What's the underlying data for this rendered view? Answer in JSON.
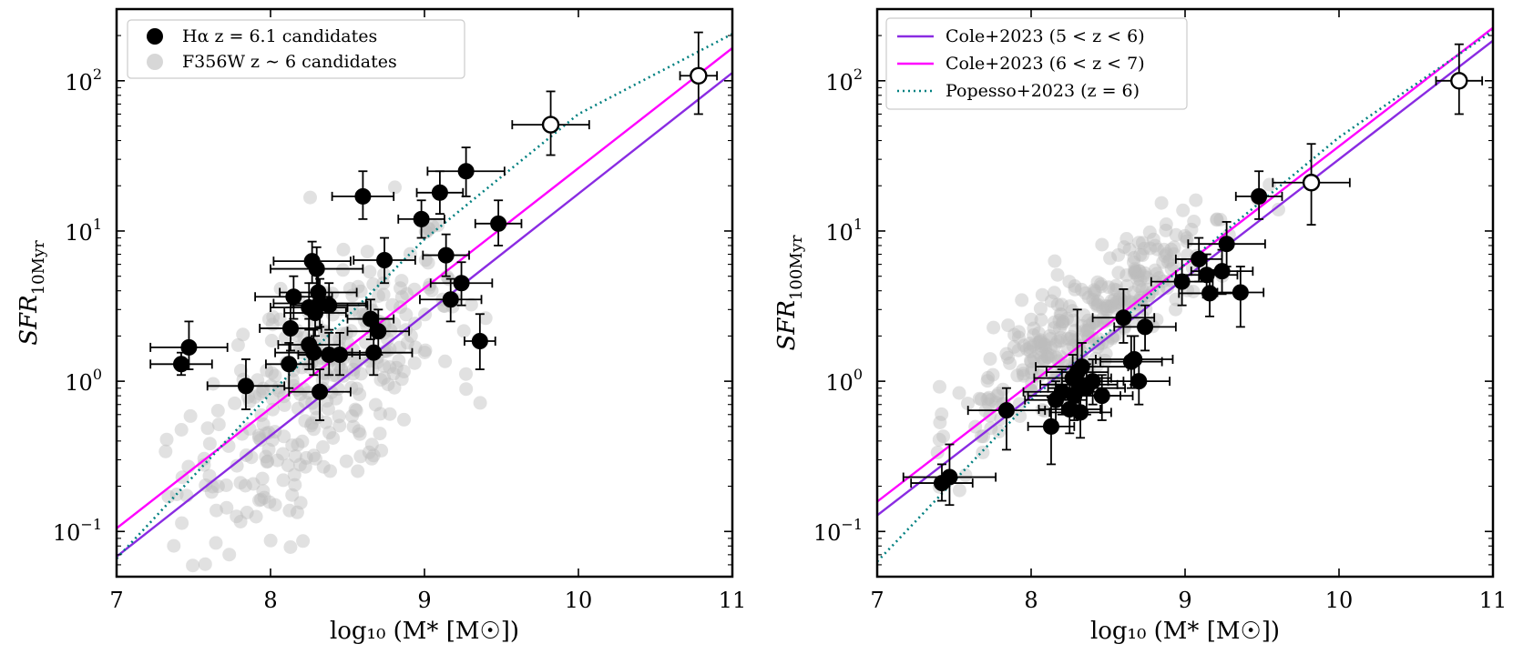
{
  "figure": {
    "legend_left": {
      "entries": [
        {
          "label": "Hα z = 6.1 candidates",
          "marker": "filled-circle",
          "color": "#000000"
        },
        {
          "label": "F356W z ∼ 6 candidates",
          "marker": "filled-circle",
          "color": "#bdbdbd"
        }
      ],
      "placement": "upper-left"
    },
    "legend_right": {
      "entries": [
        {
          "label": "Cole+2023 (5 < z < 6)",
          "style": "solid",
          "color": "#8a2be2"
        },
        {
          "label": "Cole+2023 (6 < z < 7)",
          "style": "solid",
          "color": "#ff00ff"
        },
        {
          "label": "Popesso+2023 (z = 6)",
          "style": "dotted",
          "color": "#008080"
        }
      ],
      "placement": "upper-left"
    },
    "xlabel": "log₁₀ (M* [M☉])",
    "colors": {
      "halpha": "#000000",
      "background": "#bdbdbd",
      "cole56": "#8a2be2",
      "cole67": "#ff00ff",
      "popesso": "#008080"
    }
  },
  "chart_data": [
    {
      "type": "scatter",
      "panel": "left",
      "ylabel": "SFR10Myr",
      "ylabel_main": "SFR",
      "ylabel_sub": "10Myr",
      "xlabel": "log₁₀ (M* [M☉])",
      "xlim": [
        7,
        11
      ],
      "ylim": [
        0.05,
        300
      ],
      "yscale": "log",
      "xticks": [
        "7",
        "8",
        "9",
        "10",
        "11"
      ],
      "yticks": [
        {
          "base": "10",
          "exp": "−1"
        },
        {
          "base": "10",
          "exp": "0"
        },
        {
          "base": "10",
          "exp": "1"
        },
        {
          "base": "10",
          "exp": "2"
        }
      ],
      "lines": [
        {
          "name": "Cole+2023 (5 < z < 6)",
          "type": "linear",
          "x": [
            7,
            11
          ],
          "y": [
            0.068,
            113
          ]
        },
        {
          "name": "Cole+2023 (6 < z < 7)",
          "type": "linear",
          "x": [
            7,
            11
          ],
          "y": [
            0.105,
            165
          ]
        },
        {
          "name": "Popesso+2023 (z = 6)",
          "type": "curve",
          "x": [
            7,
            8,
            9,
            10,
            11
          ],
          "y": [
            0.066,
            0.83,
            8.8,
            60,
            205
          ]
        }
      ],
      "series": [
        {
          "name": "Hα z = 6.1 candidates",
          "points": [
            {
              "x": 7.42,
              "y": 1.3,
              "xerr": 0.2,
              "ylo": 1.1,
              "yhi": 1.55
            },
            {
              "x": 7.47,
              "y": 1.68,
              "xerr": 0.25,
              "ylo": 1.2,
              "yhi": 2.5
            },
            {
              "x": 7.84,
              "y": 0.93,
              "xerr": 0.25,
              "ylo": 0.65,
              "yhi": 1.4
            },
            {
              "x": 8.12,
              "y": 1.3,
              "xerr": 0.15,
              "ylo": 0.9,
              "yhi": 1.8
            },
            {
              "x": 8.13,
              "y": 2.25,
              "xerr": 0.2,
              "ylo": 1.6,
              "yhi": 3.1
            },
            {
              "x": 8.15,
              "y": 3.65,
              "xerr": 0.25,
              "ylo": 2.6,
              "yhi": 5.0
            },
            {
              "x": 8.25,
              "y": 1.75,
              "xerr": 0.2,
              "ylo": 1.2,
              "yhi": 2.6
            },
            {
              "x": 8.25,
              "y": 3.1,
              "xerr": 0.25,
              "ylo": 2.2,
              "yhi": 4.5
            },
            {
              "x": 8.27,
              "y": 6.3,
              "xerr": 0.25,
              "ylo": 4.5,
              "yhi": 8.5
            },
            {
              "x": 8.28,
              "y": 1.55,
              "xerr": 0.25,
              "ylo": 1.1,
              "yhi": 2.2
            },
            {
              "x": 8.29,
              "y": 2.85,
              "xerr": 0.2,
              "ylo": 2.0,
              "yhi": 4.0
            },
            {
              "x": 8.3,
              "y": 5.6,
              "xerr": 0.3,
              "ylo": 4.0,
              "yhi": 7.8
            },
            {
              "x": 8.31,
              "y": 3.9,
              "xerr": 0.25,
              "ylo": 2.8,
              "yhi": 5.5
            },
            {
              "x": 8.32,
              "y": 0.85,
              "xerr": 0.2,
              "ylo": 0.55,
              "yhi": 1.2
            },
            {
              "x": 8.32,
              "y": 3.3,
              "xerr": 0.3,
              "ylo": 2.3,
              "yhi": 4.8
            },
            {
              "x": 8.38,
              "y": 1.5,
              "xerr": 0.2,
              "ylo": 1.1,
              "yhi": 2.1
            },
            {
              "x": 8.38,
              "y": 3.2,
              "xerr": 0.25,
              "ylo": 2.2,
              "yhi": 4.5
            },
            {
              "x": 8.45,
              "y": 1.5,
              "xerr": 0.2,
              "ylo": 1.1,
              "yhi": 2.1
            },
            {
              "x": 8.6,
              "y": 17.0,
              "xerr": 0.2,
              "ylo": 12,
              "yhi": 25
            },
            {
              "x": 8.65,
              "y": 2.6,
              "xerr": 0.15,
              "ylo": 1.9,
              "yhi": 3.5
            },
            {
              "x": 8.67,
              "y": 1.55,
              "xerr": 0.25,
              "ylo": 1.1,
              "yhi": 2.2
            },
            {
              "x": 8.7,
              "y": 2.15,
              "xerr": 0.2,
              "ylo": 1.5,
              "yhi": 3.0
            },
            {
              "x": 8.74,
              "y": 6.4,
              "xerr": 0.2,
              "ylo": 4.5,
              "yhi": 9.0
            },
            {
              "x": 8.98,
              "y": 12.0,
              "xerr": 0.15,
              "ylo": 9,
              "yhi": 16
            },
            {
              "x": 9.1,
              "y": 18.0,
              "xerr": 0.15,
              "ylo": 13,
              "yhi": 25
            },
            {
              "x": 9.14,
              "y": 6.9,
              "xerr": 0.15,
              "ylo": 5,
              "yhi": 9.5
            },
            {
              "x": 9.17,
              "y": 3.5,
              "xerr": 0.2,
              "ylo": 2.5,
              "yhi": 4.8
            },
            {
              "x": 9.24,
              "y": 4.5,
              "xerr": 0.2,
              "ylo": 3.2,
              "yhi": 6.2
            },
            {
              "x": 9.27,
              "y": 25.0,
              "xerr": 0.25,
              "ylo": 17,
              "yhi": 36
            },
            {
              "x": 9.36,
              "y": 1.85,
              "xerr": 0.1,
              "ylo": 1.2,
              "yhi": 2.8
            },
            {
              "x": 9.48,
              "y": 11.2,
              "xerr": 0.15,
              "ylo": 8,
              "yhi": 16
            }
          ]
        },
        {
          "name": "open-circle",
          "points": [
            {
              "x": 9.82,
              "y": 51,
              "xerr": 0.25,
              "ylo": 32,
              "yhi": 85
            },
            {
              "x": 10.78,
              "y": 108,
              "xerr": 0.12,
              "ylo": 60,
              "yhi": 210
            }
          ]
        }
      ]
    },
    {
      "type": "scatter",
      "panel": "right",
      "ylabel": "SFR100Myr",
      "ylabel_main": "SFR",
      "ylabel_sub": "100Myr",
      "xlabel": "log₁₀ (M* [M☉])",
      "xlim": [
        7,
        11
      ],
      "ylim": [
        0.05,
        300
      ],
      "yscale": "log",
      "xticks": [
        "7",
        "8",
        "9",
        "10",
        "11"
      ],
      "yticks": [
        {
          "base": "10",
          "exp": "−1"
        },
        {
          "base": "10",
          "exp": "0"
        },
        {
          "base": "10",
          "exp": "1"
        },
        {
          "base": "10",
          "exp": "2"
        }
      ],
      "lines": [
        {
          "name": "Cole+2023 (5 < z < 6)",
          "type": "linear",
          "x": [
            7,
            11
          ],
          "y": [
            0.128,
            185
          ]
        },
        {
          "name": "Cole+2023 (6 < z < 7)",
          "type": "linear",
          "x": [
            7,
            11
          ],
          "y": [
            0.158,
            225
          ]
        },
        {
          "name": "Popesso+2023 (z = 6)",
          "type": "curve",
          "x": [
            7,
            8,
            9,
            10,
            11
          ],
          "y": [
            0.063,
            0.75,
            6.0,
            42,
            215
          ]
        }
      ],
      "series": [
        {
          "name": "Hα z = 6.1 candidates",
          "points": [
            {
              "x": 7.42,
              "y": 0.21,
              "xerr": 0.2,
              "ylo": 0.16,
              "yhi": 0.28
            },
            {
              "x": 7.47,
              "y": 0.23,
              "xerr": 0.3,
              "ylo": 0.15,
              "yhi": 0.38
            },
            {
              "x": 7.84,
              "y": 0.64,
              "xerr": 0.25,
              "ylo": 0.35,
              "yhi": 0.9
            },
            {
              "x": 8.13,
              "y": 0.5,
              "xerr": 0.15,
              "ylo": 0.28,
              "yhi": 0.78
            },
            {
              "x": 8.16,
              "y": 0.75,
              "xerr": 0.2,
              "ylo": 0.5,
              "yhi": 1.0
            },
            {
              "x": 8.2,
              "y": 0.85,
              "xerr": 0.25,
              "ylo": 0.6,
              "yhi": 1.2
            },
            {
              "x": 8.25,
              "y": 0.65,
              "xerr": 0.2,
              "ylo": 0.45,
              "yhi": 0.95
            },
            {
              "x": 8.27,
              "y": 1.05,
              "xerr": 0.25,
              "ylo": 0.7,
              "yhi": 1.5
            },
            {
              "x": 8.28,
              "y": 0.8,
              "xerr": 0.3,
              "ylo": 0.55,
              "yhi": 1.15
            },
            {
              "x": 8.3,
              "y": 1.15,
              "xerr": 0.2,
              "ylo": 0.8,
              "yhi": 3.0
            },
            {
              "x": 8.31,
              "y": 0.95,
              "xerr": 0.25,
              "ylo": 0.65,
              "yhi": 1.3
            },
            {
              "x": 8.32,
              "y": 0.62,
              "xerr": 0.2,
              "ylo": 0.42,
              "yhi": 0.9
            },
            {
              "x": 8.33,
              "y": 1.25,
              "xerr": 0.3,
              "ylo": 0.85,
              "yhi": 1.8
            },
            {
              "x": 8.36,
              "y": 0.9,
              "xerr": 0.25,
              "ylo": 0.6,
              "yhi": 1.3
            },
            {
              "x": 8.4,
              "y": 1.0,
              "xerr": 0.2,
              "ylo": 0.7,
              "yhi": 1.4
            },
            {
              "x": 8.46,
              "y": 0.8,
              "xerr": 0.2,
              "ylo": 0.55,
              "yhi": 1.1
            },
            {
              "x": 8.6,
              "y": 2.65,
              "xerr": 0.2,
              "ylo": 1.8,
              "yhi": 4.1
            },
            {
              "x": 8.65,
              "y": 1.35,
              "xerr": 0.2,
              "ylo": 0.9,
              "yhi": 2.0
            },
            {
              "x": 8.67,
              "y": 1.4,
              "xerr": 0.25,
              "ylo": 0.95,
              "yhi": 2.0
            },
            {
              "x": 8.7,
              "y": 1.0,
              "xerr": 0.2,
              "ylo": 0.7,
              "yhi": 1.4
            },
            {
              "x": 8.74,
              "y": 2.3,
              "xerr": 0.2,
              "ylo": 1.6,
              "yhi": 3.2
            },
            {
              "x": 8.98,
              "y": 4.6,
              "xerr": 0.2,
              "ylo": 3.2,
              "yhi": 6.5
            },
            {
              "x": 9.09,
              "y": 6.5,
              "xerr": 0.15,
              "ylo": 4.6,
              "yhi": 9.0
            },
            {
              "x": 9.14,
              "y": 5.1,
              "xerr": 0.2,
              "ylo": 3.6,
              "yhi": 7.0
            },
            {
              "x": 9.16,
              "y": 3.85,
              "xerr": 0.2,
              "ylo": 2.7,
              "yhi": 5.5
            },
            {
              "x": 9.24,
              "y": 5.4,
              "xerr": 0.2,
              "ylo": 3.8,
              "yhi": 7.5
            },
            {
              "x": 9.27,
              "y": 8.2,
              "xerr": 0.25,
              "ylo": 5.8,
              "yhi": 11.5
            },
            {
              "x": 9.36,
              "y": 3.9,
              "xerr": 0.15,
              "ylo": 2.3,
              "yhi": 5.8
            },
            {
              "x": 9.48,
              "y": 17.0,
              "xerr": 0.15,
              "ylo": 12,
              "yhi": 25
            }
          ]
        },
        {
          "name": "open-circle",
          "points": [
            {
              "x": 9.82,
              "y": 21,
              "xerr": 0.25,
              "ylo": 11,
              "yhi": 38
            },
            {
              "x": 10.78,
              "y": 100,
              "xerr": 0.15,
              "ylo": 60,
              "yhi": 175
            }
          ]
        }
      ]
    }
  ]
}
